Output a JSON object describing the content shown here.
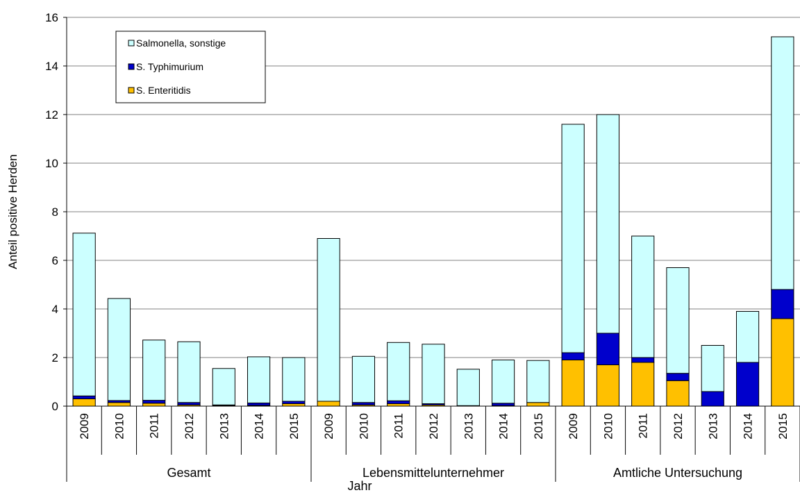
{
  "chart_data": {
    "type": "bar",
    "stacked": true,
    "ylabel": "Anteil positive Herden",
    "xlabel": "Jahr",
    "ylim": [
      0,
      16
    ],
    "yticks": [
      "0",
      "2",
      "4",
      "6",
      "8",
      "10",
      "12",
      "14",
      "16"
    ],
    "groups": [
      {
        "label": "Gesamt",
        "categories": [
          "2009",
          "2010",
          "2011",
          "2012",
          "2013",
          "2014",
          "2015"
        ]
      },
      {
        "label": "Lebensmittelunternehmer",
        "categories": [
          "2009",
          "2010",
          "2011",
          "2012",
          "2013",
          "2014",
          "2015"
        ]
      },
      {
        "label": "Amtliche Untersuchung",
        "categories": [
          "2009",
          "2010",
          "2011",
          "2012",
          "2013",
          "2014",
          "2015"
        ]
      }
    ],
    "series": [
      {
        "name": "S. Enteritidis",
        "color": "#FFC000",
        "values": [
          0.3,
          0.15,
          0.12,
          0.05,
          0.02,
          0.03,
          0.1,
          0.2,
          0.05,
          0.1,
          0.05,
          0.0,
          0.02,
          0.15,
          1.9,
          1.7,
          1.8,
          1.05,
          0.0,
          0.0,
          3.6
        ]
      },
      {
        "name": "S. Typhimurium",
        "color": "#0000CC",
        "values": [
          0.12,
          0.08,
          0.12,
          0.1,
          0.03,
          0.1,
          0.1,
          0.0,
          0.1,
          0.12,
          0.05,
          0.02,
          0.1,
          0.0,
          0.3,
          1.3,
          0.2,
          0.3,
          0.6,
          1.8,
          1.2
        ]
      },
      {
        "name": "Salmonella, sonstige",
        "color": "#CCFFFF",
        "values": [
          6.7,
          4.2,
          2.48,
          2.5,
          1.5,
          1.9,
          1.8,
          6.7,
          1.9,
          2.4,
          2.45,
          1.5,
          1.78,
          1.73,
          9.4,
          9.0,
          5.0,
          4.35,
          1.9,
          2.1,
          10.4
        ]
      }
    ],
    "legend": {
      "position": "top-left",
      "entries": [
        "Salmonella, sonstige",
        "S. Typhimurium",
        "S. Enteritidis"
      ]
    },
    "grid": true
  }
}
